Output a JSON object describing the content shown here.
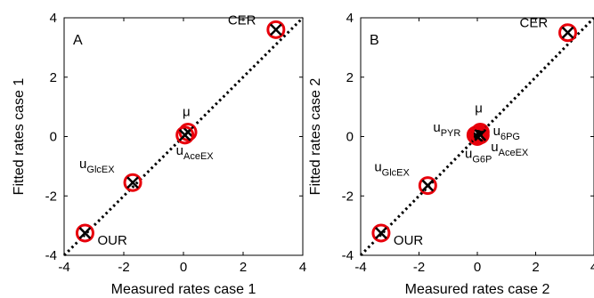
{
  "chart_data": [
    {
      "type": "scatter",
      "panel_letter": "A",
      "xlabel": "Measured rates case 1",
      "ylabel": "Fitted rates case 1",
      "xlim": [
        -4,
        4
      ],
      "ylim": [
        -4,
        4
      ],
      "xticks": [
        "-4",
        "-2",
        "0",
        "2",
        "4"
      ],
      "yticks": [
        "-4",
        "-2",
        "0",
        "2",
        "4"
      ],
      "identity_line": true,
      "marker_colors": {
        "circle": "#e8000b",
        "cross": "#000000",
        "line": "#000000"
      },
      "points": [
        {
          "label": "CER",
          "sub": "",
          "x": 3.1,
          "y": 3.6
        },
        {
          "label": "μ",
          "sub": "",
          "x": 0.15,
          "y": 0.15
        },
        {
          "label": "u",
          "sub": "AceEX",
          "x": 0.05,
          "y": 0.05
        },
        {
          "label": "u",
          "sub": "GlcEX",
          "x": -1.7,
          "y": -1.55
        },
        {
          "label": "OUR",
          "sub": "",
          "x": -3.3,
          "y": -3.25
        }
      ]
    },
    {
      "type": "scatter",
      "panel_letter": "B",
      "xlabel": "Measured rates case 2",
      "ylabel": "Fitted rates case 2",
      "xlim": [
        -4,
        4
      ],
      "ylim": [
        -4,
        4
      ],
      "xticks": [
        "-4",
        "-2",
        "0",
        "2",
        "4"
      ],
      "yticks": [
        "-4",
        "-2",
        "0",
        "2",
        "4"
      ],
      "identity_line": true,
      "marker_colors": {
        "circle": "#e8000b",
        "cross": "#000000",
        "line": "#000000"
      },
      "points": [
        {
          "label": "CER",
          "sub": "",
          "x": 3.1,
          "y": 3.5
        },
        {
          "label": "μ",
          "sub": "",
          "x": 0.1,
          "y": 0.15
        },
        {
          "label": "u",
          "sub": "PYR",
          "x": -0.05,
          "y": 0.05
        },
        {
          "label": "u",
          "sub": "6PG",
          "x": 0.05,
          "y": 0.1
        },
        {
          "label": "u",
          "sub": "G6P",
          "x": 0.0,
          "y": 0.0
        },
        {
          "label": "u",
          "sub": "AceEX",
          "x": 0.1,
          "y": 0.05
        },
        {
          "label": "u",
          "sub": "GlcEX",
          "x": -1.7,
          "y": -1.65
        },
        {
          "label": "OUR",
          "sub": "",
          "x": -3.3,
          "y": -3.25
        }
      ]
    }
  ]
}
